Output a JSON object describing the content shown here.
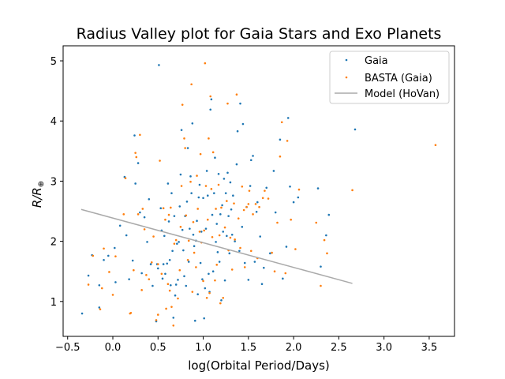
{
  "chart_data": {
    "type": "scatter",
    "title": "Radius Valley plot for Gaia Stars and Exo Planets",
    "xlabel": "log(Orbital Period/Days)",
    "ylabel": "R/R⊕",
    "xlim": [
      -0.55,
      3.78
    ],
    "ylim": [
      0.42,
      5.25
    ],
    "xticks": [
      -0.5,
      0.0,
      0.5,
      1.0,
      1.5,
      2.0,
      2.5,
      3.0,
      3.5
    ],
    "xtick_labels": [
      "−0.5",
      "0.0",
      "0.5",
      "1.0",
      "1.5",
      "2.0",
      "2.5",
      "3.0",
      "3.5"
    ],
    "yticks": [
      1,
      2,
      3,
      4,
      5
    ],
    "ytick_labels": [
      "1",
      "2",
      "3",
      "4",
      "5"
    ],
    "grid": false,
    "legend_position": "top-right",
    "legend": [
      "Gaia",
      "BASTA (Gaia)",
      "Model (HoVan)"
    ],
    "colors": {
      "gaia": "#1f77b4",
      "basta": "#ff7f0e",
      "model": "#aaaaaa"
    },
    "series": [
      {
        "name": "Gaia",
        "kind": "scatter",
        "points": [
          [
            -0.34,
            0.8
          ],
          [
            -0.27,
            1.43
          ],
          [
            -0.23,
            1.77
          ],
          [
            -0.15,
            1.27
          ],
          [
            -0.15,
            0.9
          ],
          [
            -0.1,
            1.69
          ],
          [
            -0.05,
            1.76
          ],
          [
            0.02,
            1.89
          ],
          [
            0.03,
            1.32
          ],
          [
            0.08,
            2.26
          ],
          [
            0.13,
            3.07
          ],
          [
            0.15,
            2.1
          ],
          [
            0.18,
            1.37
          ],
          [
            0.22,
            1.68
          ],
          [
            0.24,
            3.76
          ],
          [
            0.25,
            2.96
          ],
          [
            0.28,
            3.3
          ],
          [
            0.3,
            2.48
          ],
          [
            0.32,
            1.47
          ],
          [
            0.35,
            2.4
          ],
          [
            0.38,
            1.99
          ],
          [
            0.4,
            2.7
          ],
          [
            0.42,
            1.62
          ],
          [
            0.44,
            1.26
          ],
          [
            0.48,
            0.67
          ],
          [
            0.49,
            1.62
          ],
          [
            0.5,
            1.55
          ],
          [
            0.51,
            4.93
          ],
          [
            0.53,
            2.55
          ],
          [
            0.54,
            2.18
          ],
          [
            0.55,
            1.38
          ],
          [
            0.56,
            1.62
          ],
          [
            0.57,
            2.09
          ],
          [
            0.58,
            1.46
          ],
          [
            0.6,
            1.63
          ],
          [
            0.61,
            2.96
          ],
          [
            0.62,
            2.33
          ],
          [
            0.63,
            1.69
          ],
          [
            0.64,
            1.27
          ],
          [
            0.65,
            2.8
          ],
          [
            0.66,
            1.84
          ],
          [
            0.67,
            0.73
          ],
          [
            0.68,
            2.42
          ],
          [
            0.69,
            1.1
          ],
          [
            0.7,
            1.28
          ],
          [
            0.71,
            1.96
          ],
          [
            0.72,
            1.36
          ],
          [
            0.73,
            1.99
          ],
          [
            0.74,
            2.58
          ],
          [
            0.75,
            3.11
          ],
          [
            0.76,
            3.85
          ],
          [
            0.77,
            2.19
          ],
          [
            0.78,
            1.85
          ],
          [
            0.79,
            1.42
          ],
          [
            0.8,
            2.42
          ],
          [
            0.81,
            1.26
          ],
          [
            0.82,
            2.66
          ],
          [
            0.83,
            3.55
          ],
          [
            0.84,
            1.66
          ],
          [
            0.85,
            2.21
          ],
          [
            0.86,
            3.08
          ],
          [
            0.87,
            2.8
          ],
          [
            0.88,
            3.96
          ],
          [
            0.89,
            2.11
          ],
          [
            0.9,
            1.92
          ],
          [
            0.91,
            0.68
          ],
          [
            0.92,
            2.01
          ],
          [
            0.93,
            2.34
          ],
          [
            0.94,
            1.12
          ],
          [
            0.95,
            2.73
          ],
          [
            0.96,
            2.94
          ],
          [
            0.97,
            1.64
          ],
          [
            0.98,
            2.16
          ],
          [
            0.99,
            1.37
          ],
          [
            1.0,
            2.72
          ],
          [
            1.01,
            0.72
          ],
          [
            1.02,
            1.22
          ],
          [
            1.03,
            2.21
          ],
          [
            1.04,
            3.17
          ],
          [
            1.05,
            2.76
          ],
          [
            1.06,
            1.46
          ],
          [
            1.07,
            1.16
          ],
          [
            1.08,
            4.19
          ],
          [
            1.09,
            4.36
          ],
          [
            1.1,
            2.44
          ],
          [
            1.11,
            1.5
          ],
          [
            1.12,
            2.8
          ],
          [
            1.13,
            3.39
          ],
          [
            1.14,
            1.99
          ],
          [
            1.15,
            2.29
          ],
          [
            1.16,
            1.82
          ],
          [
            1.17,
            3.12
          ],
          [
            1.18,
            1.66
          ],
          [
            1.19,
            2.45
          ],
          [
            1.2,
            1.02
          ],
          [
            1.21,
            2.6
          ],
          [
            1.22,
            2.16
          ],
          [
            1.23,
            3.04
          ],
          [
            1.24,
            1.35
          ],
          [
            1.25,
            2.8
          ],
          [
            1.26,
            2.09
          ],
          [
            1.27,
            3.14
          ],
          [
            1.28,
            2.42
          ],
          [
            1.29,
            1.8
          ],
          [
            1.3,
            2.98
          ],
          [
            1.31,
            2.53
          ],
          [
            1.32,
            2.11
          ],
          [
            1.33,
            2.76
          ],
          [
            1.35,
            2.0
          ],
          [
            1.37,
            3.28
          ],
          [
            1.38,
            3.83
          ],
          [
            1.4,
            1.84
          ],
          [
            1.41,
            4.29
          ],
          [
            1.43,
            2.24
          ],
          [
            1.44,
            3.95
          ],
          [
            1.46,
            1.64
          ],
          [
            1.48,
            2.57
          ],
          [
            1.5,
            1.36
          ],
          [
            1.52,
            2.92
          ],
          [
            1.53,
            3.35
          ],
          [
            1.55,
            3.42
          ],
          [
            1.57,
            1.66
          ],
          [
            1.59,
            2.49
          ],
          [
            1.6,
            2.65
          ],
          [
            1.63,
            2.08
          ],
          [
            1.65,
            1.29
          ],
          [
            1.67,
            1.56
          ],
          [
            1.7,
            2.89
          ],
          [
            1.74,
            1.8
          ],
          [
            1.78,
            3.17
          ],
          [
            1.8,
            2.48
          ],
          [
            1.85,
            3.69
          ],
          [
            1.88,
            1.38
          ],
          [
            1.92,
            1.91
          ],
          [
            1.94,
            4.05
          ],
          [
            1.96,
            2.91
          ],
          [
            2.0,
            2.65
          ],
          [
            2.05,
            2.73
          ],
          [
            2.27,
            2.88
          ],
          [
            2.3,
            1.58
          ],
          [
            2.36,
            2.1
          ],
          [
            2.39,
            2.44
          ],
          [
            2.68,
            3.86
          ]
        ]
      },
      {
        "name": "BASTA (Gaia)",
        "kind": "scatter",
        "points": [
          [
            -0.27,
            1.28
          ],
          [
            -0.22,
            1.76
          ],
          [
            -0.14,
            0.87
          ],
          [
            -0.12,
            1.22
          ],
          [
            -0.1,
            1.88
          ],
          [
            -0.04,
            1.49
          ],
          [
            0.0,
            1.11
          ],
          [
            0.03,
            1.75
          ],
          [
            0.12,
            2.45
          ],
          [
            0.14,
            3.05
          ],
          [
            0.19,
            0.8
          ],
          [
            0.2,
            0.81
          ],
          [
            0.23,
            1.52
          ],
          [
            0.25,
            3.47
          ],
          [
            0.26,
            3.4
          ],
          [
            0.28,
            2.45
          ],
          [
            0.3,
            3.77
          ],
          [
            0.32,
            1.19
          ],
          [
            0.33,
            2.54
          ],
          [
            0.35,
            2.2
          ],
          [
            0.37,
            1.44
          ],
          [
            0.4,
            1.37
          ],
          [
            0.43,
            1.65
          ],
          [
            0.45,
            2.08
          ],
          [
            0.48,
            0.69
          ],
          [
            0.5,
            1.62
          ],
          [
            0.5,
            0.78
          ],
          [
            0.52,
            3.34
          ],
          [
            0.54,
            1.46
          ],
          [
            0.56,
            2.55
          ],
          [
            0.58,
            2.36
          ],
          [
            0.59,
            0.88
          ],
          [
            0.61,
            1.29
          ],
          [
            0.62,
            2.44
          ],
          [
            0.63,
            1.18
          ],
          [
            0.64,
            2.56
          ],
          [
            0.65,
            0.91
          ],
          [
            0.67,
            0.6
          ],
          [
            0.68,
            1.96
          ],
          [
            0.7,
            2.02
          ],
          [
            0.72,
            1.05
          ],
          [
            0.74,
            1.52
          ],
          [
            0.75,
            2.24
          ],
          [
            0.76,
            2.92
          ],
          [
            0.77,
            4.27
          ],
          [
            0.79,
            3.71
          ],
          [
            0.8,
            3.55
          ],
          [
            0.81,
            2.43
          ],
          [
            0.83,
            1.69
          ],
          [
            0.84,
            2.01
          ],
          [
            0.86,
            2.99
          ],
          [
            0.87,
            4.61
          ],
          [
            0.88,
            1.16
          ],
          [
            0.89,
            2.32
          ],
          [
            0.9,
            1.81
          ],
          [
            0.92,
            1.57
          ],
          [
            0.93,
            3.09
          ],
          [
            0.94,
            2.54
          ],
          [
            0.96,
            2.16
          ],
          [
            0.97,
            3.45
          ],
          [
            0.98,
            1.98
          ],
          [
            1.0,
            1.34
          ],
          [
            1.01,
            2.18
          ],
          [
            1.02,
            4.96
          ],
          [
            1.03,
            2.92
          ],
          [
            1.04,
            1.06
          ],
          [
            1.05,
            2.36
          ],
          [
            1.06,
            3.71
          ],
          [
            1.07,
            1.14
          ],
          [
            1.08,
            4.41
          ],
          [
            1.09,
            2.87
          ],
          [
            1.1,
            2.07
          ],
          [
            1.11,
            3.48
          ],
          [
            1.13,
            1.35
          ],
          [
            1.14,
            2.54
          ],
          [
            1.15,
            1.61
          ],
          [
            1.17,
            2.94
          ],
          [
            1.18,
            2.1
          ],
          [
            1.19,
            0.97
          ],
          [
            1.2,
            2.56
          ],
          [
            1.22,
            1.06
          ],
          [
            1.24,
            2.23
          ],
          [
            1.26,
            2.67
          ],
          [
            1.27,
            4.29
          ],
          [
            1.28,
            1.85
          ],
          [
            1.3,
            2.06
          ],
          [
            1.32,
            1.53
          ],
          [
            1.34,
            2.63
          ],
          [
            1.35,
            2.03
          ],
          [
            1.37,
            4.44
          ],
          [
            1.39,
            2.38
          ],
          [
            1.41,
            1.89
          ],
          [
            1.43,
            2.91
          ],
          [
            1.45,
            2.52
          ],
          [
            1.46,
            1.57
          ],
          [
            1.48,
            2.57
          ],
          [
            1.5,
            2.62
          ],
          [
            1.51,
            2.84
          ],
          [
            1.53,
            1.84
          ],
          [
            1.55,
            2.45
          ],
          [
            1.58,
            2.62
          ],
          [
            1.6,
            1.72
          ],
          [
            1.62,
            2.57
          ],
          [
            1.66,
            2.72
          ],
          [
            1.68,
            2.84
          ],
          [
            1.72,
            2.71
          ],
          [
            1.76,
            1.81
          ],
          [
            1.79,
            1.5
          ],
          [
            1.82,
            2.31
          ],
          [
            1.85,
            3.41
          ],
          [
            1.87,
            3.98
          ],
          [
            1.91,
            1.47
          ],
          [
            1.93,
            3.67
          ],
          [
            1.97,
            2.36
          ],
          [
            2.02,
            1.87
          ],
          [
            2.06,
            2.86
          ],
          [
            2.25,
            2.31
          ],
          [
            2.3,
            1.26
          ],
          [
            2.34,
            2.02
          ],
          [
            2.37,
            1.8
          ],
          [
            2.65,
            2.85
          ],
          [
            3.57,
            3.6
          ]
        ]
      },
      {
        "name": "Model (HoVan)",
        "kind": "line",
        "points": [
          [
            -0.35,
            2.53
          ],
          [
            2.65,
            1.3
          ]
        ]
      }
    ]
  }
}
